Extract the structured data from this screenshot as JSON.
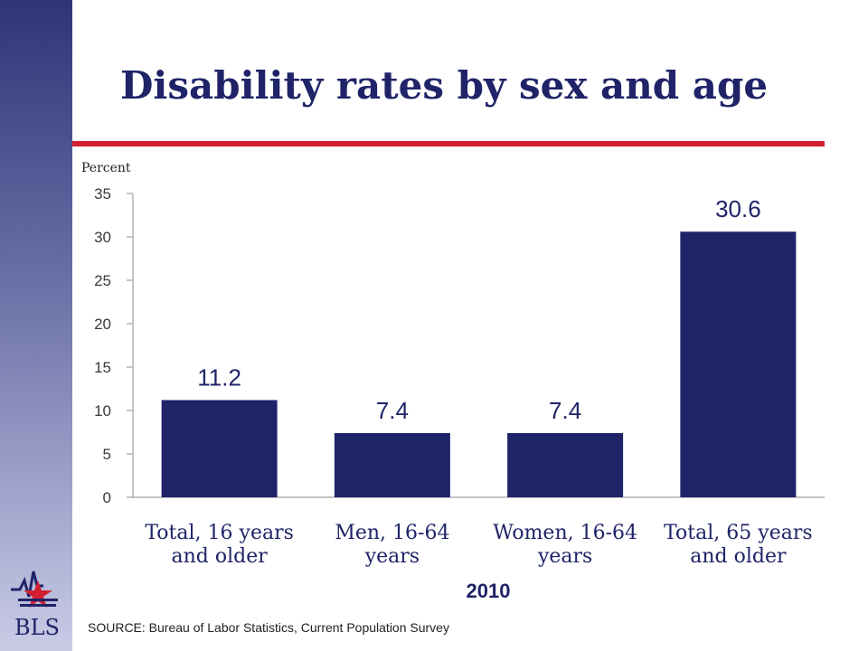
{
  "page": {
    "title": "Disability rates by sex and age",
    "year": "2010",
    "source": "SOURCE:  Bureau of Labor Statistics, Current Population Survey",
    "logo_text": "BLS"
  },
  "colors": {
    "bar": "#1f2468",
    "accent_line": "#d32030",
    "sidebar_top": "#2e3577",
    "sidebar_bottom": "#c9cbe6"
  },
  "chart_data": {
    "type": "bar",
    "ylabel": "Percent",
    "ylim": [
      0,
      35
    ],
    "yticks": [
      0,
      5,
      10,
      15,
      20,
      25,
      30,
      35
    ],
    "categories": [
      [
        "Total, 16 years",
        "and older"
      ],
      [
        "Men, 16-64",
        "years"
      ],
      [
        "Women, 16-64",
        "years"
      ],
      [
        "Total, 65 years",
        "and older"
      ]
    ],
    "values": [
      11.2,
      7.4,
      7.4,
      30.6
    ],
    "value_labels": [
      "11.2",
      "7.4",
      "7.4",
      "30.6"
    ],
    "grid": false
  }
}
